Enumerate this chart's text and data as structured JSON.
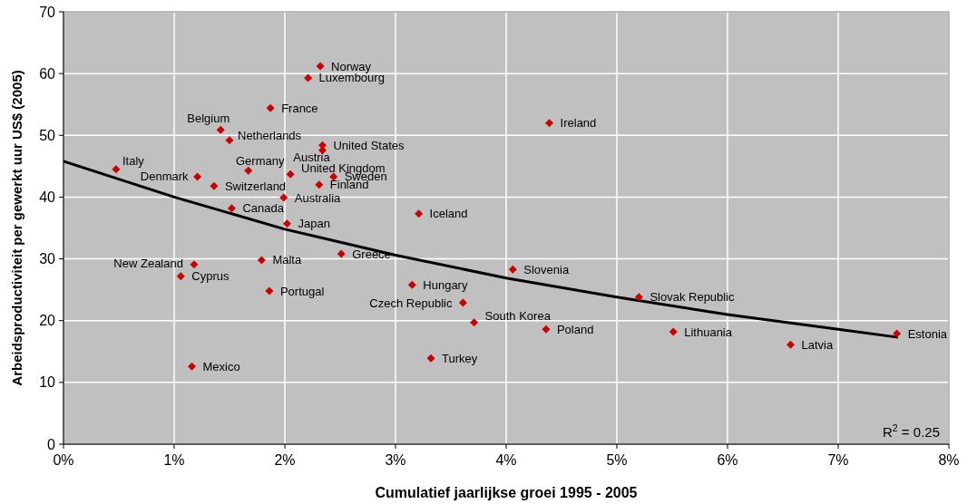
{
  "chart_data": {
    "type": "scatter",
    "xlabel": "Cumulatief jaarlijkse groei 1995 - 2005",
    "ylabel": "Arbeidsproductiviteit per gewerkt uur US$ (2005)",
    "xlim": [
      0,
      8
    ],
    "xticks": [
      {
        "value": 0,
        "label": "0%"
      },
      {
        "value": 1,
        "label": "1%"
      },
      {
        "value": 2,
        "label": "2%"
      },
      {
        "value": 3,
        "label": "3%"
      },
      {
        "value": 4,
        "label": "4%"
      },
      {
        "value": 5,
        "label": "5%"
      },
      {
        "value": 6,
        "label": "6%"
      },
      {
        "value": 7,
        "label": "7%"
      },
      {
        "value": 8,
        "label": "8%"
      }
    ],
    "ylim": [
      0,
      70
    ],
    "yticks": [
      0,
      10,
      20,
      30,
      40,
      50,
      60,
      70
    ],
    "grid": true,
    "marker": "diamond",
    "series": [
      {
        "color": "#cc0000",
        "x": [
          0.475,
          1.21,
          1.42,
          1.5,
          1.36,
          1.67,
          1.52,
          1.18,
          1.06,
          1.79,
          1.86,
          1.16,
          1.87,
          2.21,
          2.32,
          2.34,
          2.34,
          2.05,
          2.44,
          2.31,
          1.99,
          2.02,
          2.51,
          3.21,
          3.15,
          3.61,
          3.71,
          3.32,
          4.06,
          4.39,
          4.36,
          5.2,
          5.51,
          6.57,
          7.53
        ],
        "values": [
          44.5,
          43.3,
          50.9,
          49.2,
          41.8,
          44.3,
          38.2,
          29.1,
          27.2,
          29.8,
          24.8,
          12.6,
          54.4,
          59.3,
          61.2,
          48.4,
          47.6,
          43.7,
          43.3,
          42,
          39.9,
          35.7,
          30.8,
          37.3,
          25.8,
          22.9,
          19.7,
          13.9,
          28.3,
          52,
          18.6,
          23.8,
          18.2,
          16.1,
          17.9
        ]
      },
      {
        "type": "line",
        "color": "#000000",
        "line_style": "solid",
        "marker": "none",
        "x": [
          0,
          1,
          2,
          3,
          4,
          5,
          6,
          7,
          7.54
        ],
        "values": [
          45.8,
          40,
          34.8,
          30.6,
          26.9,
          23.8,
          21,
          18.6,
          17.3
        ]
      }
    ],
    "annotations": [
      {
        "text": "Italy",
        "x": 0.475,
        "y": 44.5
      },
      {
        "text": "Denmark",
        "x": 1.21,
        "y": 43.3
      },
      {
        "text": "Belgium",
        "x": 1.42,
        "y": 50.9
      },
      {
        "text": "Netherlands",
        "x": 1.5,
        "y": 49.2
      },
      {
        "text": "Switzerland",
        "x": 1.36,
        "y": 41.8
      },
      {
        "text": "Germany",
        "x": 1.67,
        "y": 44.3
      },
      {
        "text": "Canada",
        "x": 1.52,
        "y": 38.2
      },
      {
        "text": "New Zealand",
        "x": 1.18,
        "y": 29.1
      },
      {
        "text": "Cyprus",
        "x": 1.06,
        "y": 27.2
      },
      {
        "text": "Malta",
        "x": 1.79,
        "y": 29.8
      },
      {
        "text": "Portugal",
        "x": 1.86,
        "y": 24.8
      },
      {
        "text": "Mexico",
        "x": 1.16,
        "y": 12.6
      },
      {
        "text": "France",
        "x": 1.87,
        "y": 54.4
      },
      {
        "text": "Luxembourg",
        "x": 2.21,
        "y": 59.3
      },
      {
        "text": "Norway",
        "x": 2.32,
        "y": 61.2
      },
      {
        "text": "United States",
        "x": 2.34,
        "y": 48.4
      },
      {
        "text": "Austria",
        "x": 2.34,
        "y": 47.6
      },
      {
        "text": "United Kingdom",
        "x": 2.05,
        "y": 43.7
      },
      {
        "text": "Sweden",
        "x": 2.44,
        "y": 43.3
      },
      {
        "text": "Finland",
        "x": 2.31,
        "y": 42
      },
      {
        "text": "Australia",
        "x": 1.99,
        "y": 39.9
      },
      {
        "text": "Japan",
        "x": 2.02,
        "y": 35.7
      },
      {
        "text": "Greece",
        "x": 2.51,
        "y": 30.8
      },
      {
        "text": "Iceland",
        "x": 3.21,
        "y": 37.3
      },
      {
        "text": "Hungary",
        "x": 3.15,
        "y": 25.8
      },
      {
        "text": "Czech Republic",
        "x": 3.61,
        "y": 22.9
      },
      {
        "text": "South Korea",
        "x": 3.71,
        "y": 19.7
      },
      {
        "text": "Turkey",
        "x": 3.32,
        "y": 13.9
      },
      {
        "text": "Slovenia",
        "x": 4.06,
        "y": 28.3
      },
      {
        "text": "Ireland",
        "x": 4.39,
        "y": 52
      },
      {
        "text": "Poland",
        "x": 4.36,
        "y": 18.6
      },
      {
        "text": "Slovak Republic",
        "x": 5.2,
        "y": 23.8
      },
      {
        "text": "Lithuania",
        "x": 5.51,
        "y": 18.2
      },
      {
        "text": "Latvia",
        "x": 6.57,
        "y": 16.1
      },
      {
        "text": "Estonia",
        "x": 7.53,
        "y": 17.9
      },
      "R$^{2}$ = 0.25"
    ]
  }
}
